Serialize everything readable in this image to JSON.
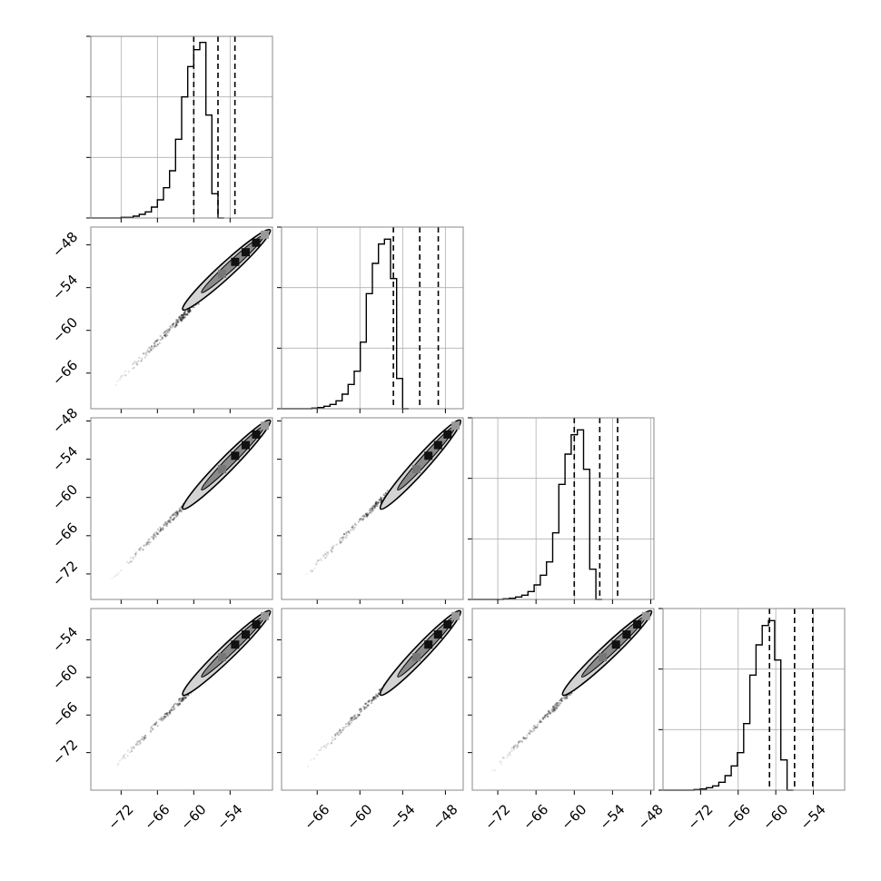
{
  "chart_data": {
    "type": "corner",
    "n_parameters": 4,
    "grid": true,
    "quantiles": [
      0.16,
      0.5,
      0.84
    ],
    "params": [
      {
        "range": [
          -77,
          -47
        ],
        "ticks": [
          -72,
          -66,
          -60,
          -54
        ],
        "quantile_lines": [
          -60.0,
          -56.0,
          -53.2
        ]
      },
      {
        "range": [
          -71,
          -45.5
        ],
        "ticks": [
          -66,
          -60,
          -54,
          -48
        ],
        "quantile_lines": [
          -55.3,
          -51.6,
          -49.0
        ]
      },
      {
        "range": [
          -76,
          -47.5
        ],
        "ticks": [
          -72,
          -66,
          -60,
          -54,
          -48
        ],
        "quantile_lines": [
          -60.0,
          -56.0,
          -53.2
        ]
      },
      {
        "range": [
          -78,
          -49
        ],
        "ticks": [
          -72,
          -66,
          -60,
          -54
        ],
        "quantile_lines": [
          -61.0,
          -57.0,
          -54.1
        ]
      }
    ],
    "histograms": [
      {
        "bin_start": -77,
        "bin_width": 1.0,
        "counts": [
          0,
          0,
          0,
          0,
          0,
          1,
          1,
          3,
          6,
          10,
          18,
          30,
          50,
          78,
          130,
          200,
          250,
          278,
          290,
          170,
          40,
          0
        ],
        "ymax": 300
      },
      {
        "bin_start": -71,
        "bin_width": 0.85,
        "counts": [
          0,
          0,
          0,
          0,
          0,
          1,
          2,
          4,
          7,
          13,
          24,
          40,
          62,
          110,
          190,
          240,
          272,
          280,
          215,
          50,
          0
        ],
        "ymax": 300
      },
      {
        "bin_start": -76,
        "bin_width": 0.97,
        "counts": [
          0,
          0,
          0,
          0,
          0,
          1,
          2,
          4,
          7,
          13,
          24,
          40,
          62,
          110,
          190,
          240,
          272,
          280,
          215,
          50,
          0
        ],
        "ymax": 300
      },
      {
        "bin_start": -78,
        "bin_width": 0.99,
        "counts": [
          0,
          0,
          0,
          0,
          0,
          1,
          2,
          4,
          7,
          13,
          24,
          40,
          62,
          110,
          190,
          240,
          272,
          280,
          215,
          50,
          0
        ],
        "ymax": 300
      }
    ],
    "hist_yticks": [
      0,
      100,
      200,
      300
    ],
    "y_tick_labels_left": {
      "row1": [
        -48,
        -54,
        -60,
        -66
      ],
      "row2": [
        -48,
        -54,
        -60,
        -66,
        -72
      ],
      "row3": [
        -54,
        -60,
        -66,
        -72
      ]
    },
    "x_tick_labels_bottom": {
      "col0": [
        -72,
        -66,
        -60,
        -54
      ],
      "col1": [
        -66,
        -60,
        -54,
        -48
      ],
      "col2": [
        -72,
        -66,
        -60,
        -54,
        -48
      ],
      "col3": [
        -72,
        -66,
        -60,
        -54
      ]
    },
    "colors": {
      "line": "#000000",
      "grid": "#b0b0b0",
      "points": "#000000"
    }
  }
}
